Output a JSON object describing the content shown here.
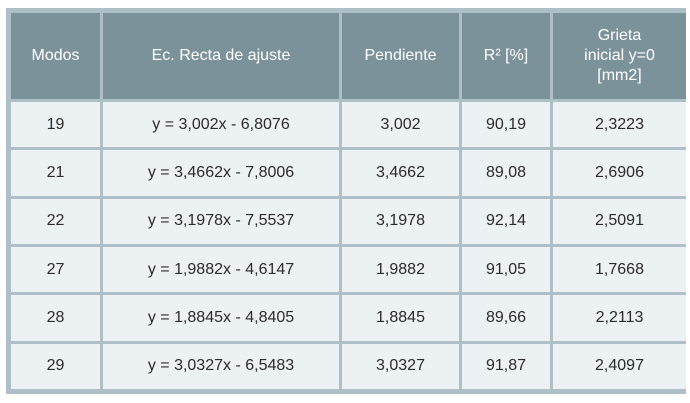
{
  "table": {
    "headers": {
      "modos": "Modos",
      "ecuacion": "Ec. Recta de ajuste",
      "pendiente": "Pendiente",
      "r2": "R² [%]",
      "grieta_line1": "Grieta",
      "grieta_line2": "inicial y=0",
      "grieta_line3": "[mm2]"
    },
    "rows": [
      {
        "modo": "19",
        "ecuacion": "y = 3,002x - 6,8076",
        "pendiente": "3,002",
        "r2": "90,19",
        "grieta": "2,3223"
      },
      {
        "modo": "21",
        "ecuacion": "y = 3,4662x - 7,8006",
        "pendiente": "3,4662",
        "r2": "89,08",
        "grieta": "2,6906"
      },
      {
        "modo": "22",
        "ecuacion": "y = 3,1978x - 7,5537",
        "pendiente": "3,1978",
        "r2": "92,14",
        "grieta": "2,5091"
      },
      {
        "modo": "27",
        "ecuacion": "y = 1,9882x - 4,6147",
        "pendiente": "1,9882",
        "r2": "91,05",
        "grieta": "1,7668"
      },
      {
        "modo": "28",
        "ecuacion": "y = 1,8845x - 4,8405",
        "pendiente": "1,8845",
        "r2": "89,66",
        "grieta": "2,2113"
      },
      {
        "modo": "29",
        "ecuacion": "y = 3,0327x - 6,5483",
        "pendiente": "3,0327",
        "r2": "91,87",
        "grieta": "2,4097"
      }
    ]
  },
  "colors": {
    "header_bg": "#7c929b",
    "cell_bg": "#ecf1f4",
    "grid": "#aebfc7"
  }
}
